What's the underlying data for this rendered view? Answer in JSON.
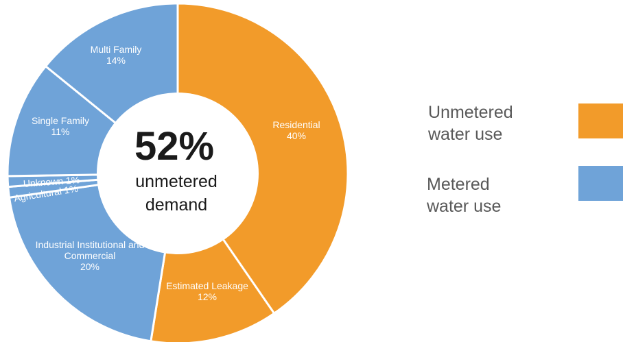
{
  "chart_data": {
    "type": "pie",
    "center_label": {
      "value": "52%",
      "line1": "unmetered",
      "line2": "demand"
    },
    "slices": [
      {
        "label": [
          "Residential"
        ],
        "percent_label": "40%",
        "value": 40,
        "group": "unmetered"
      },
      {
        "label": [
          "Estimated Leakage"
        ],
        "percent_label": "12%",
        "value": 12,
        "group": "unmetered"
      },
      {
        "label": [
          "Industrial Institutional and",
          "Commercial"
        ],
        "percent_label": "20%",
        "value": 20,
        "group": "metered"
      },
      {
        "label": [
          "Agricultural 1%"
        ],
        "percent_label": "",
        "value": 1,
        "group": "metered"
      },
      {
        "label": [
          "Unknown 1%"
        ],
        "percent_label": "",
        "value": 1,
        "group": "metered"
      },
      {
        "label": [
          "Single Family"
        ],
        "percent_label": "11%",
        "value": 11,
        "group": "metered"
      },
      {
        "label": [
          "Multi Family"
        ],
        "percent_label": "14%",
        "value": 14,
        "group": "metered"
      }
    ],
    "legend": [
      {
        "group": "unmetered",
        "lines": [
          "Unmetered",
          "water use"
        ],
        "color": "#F29B2A"
      },
      {
        "group": "metered",
        "lines": [
          "Metered",
          "water use"
        ],
        "color": "#6FA3D8"
      }
    ],
    "legend_position": "right"
  }
}
